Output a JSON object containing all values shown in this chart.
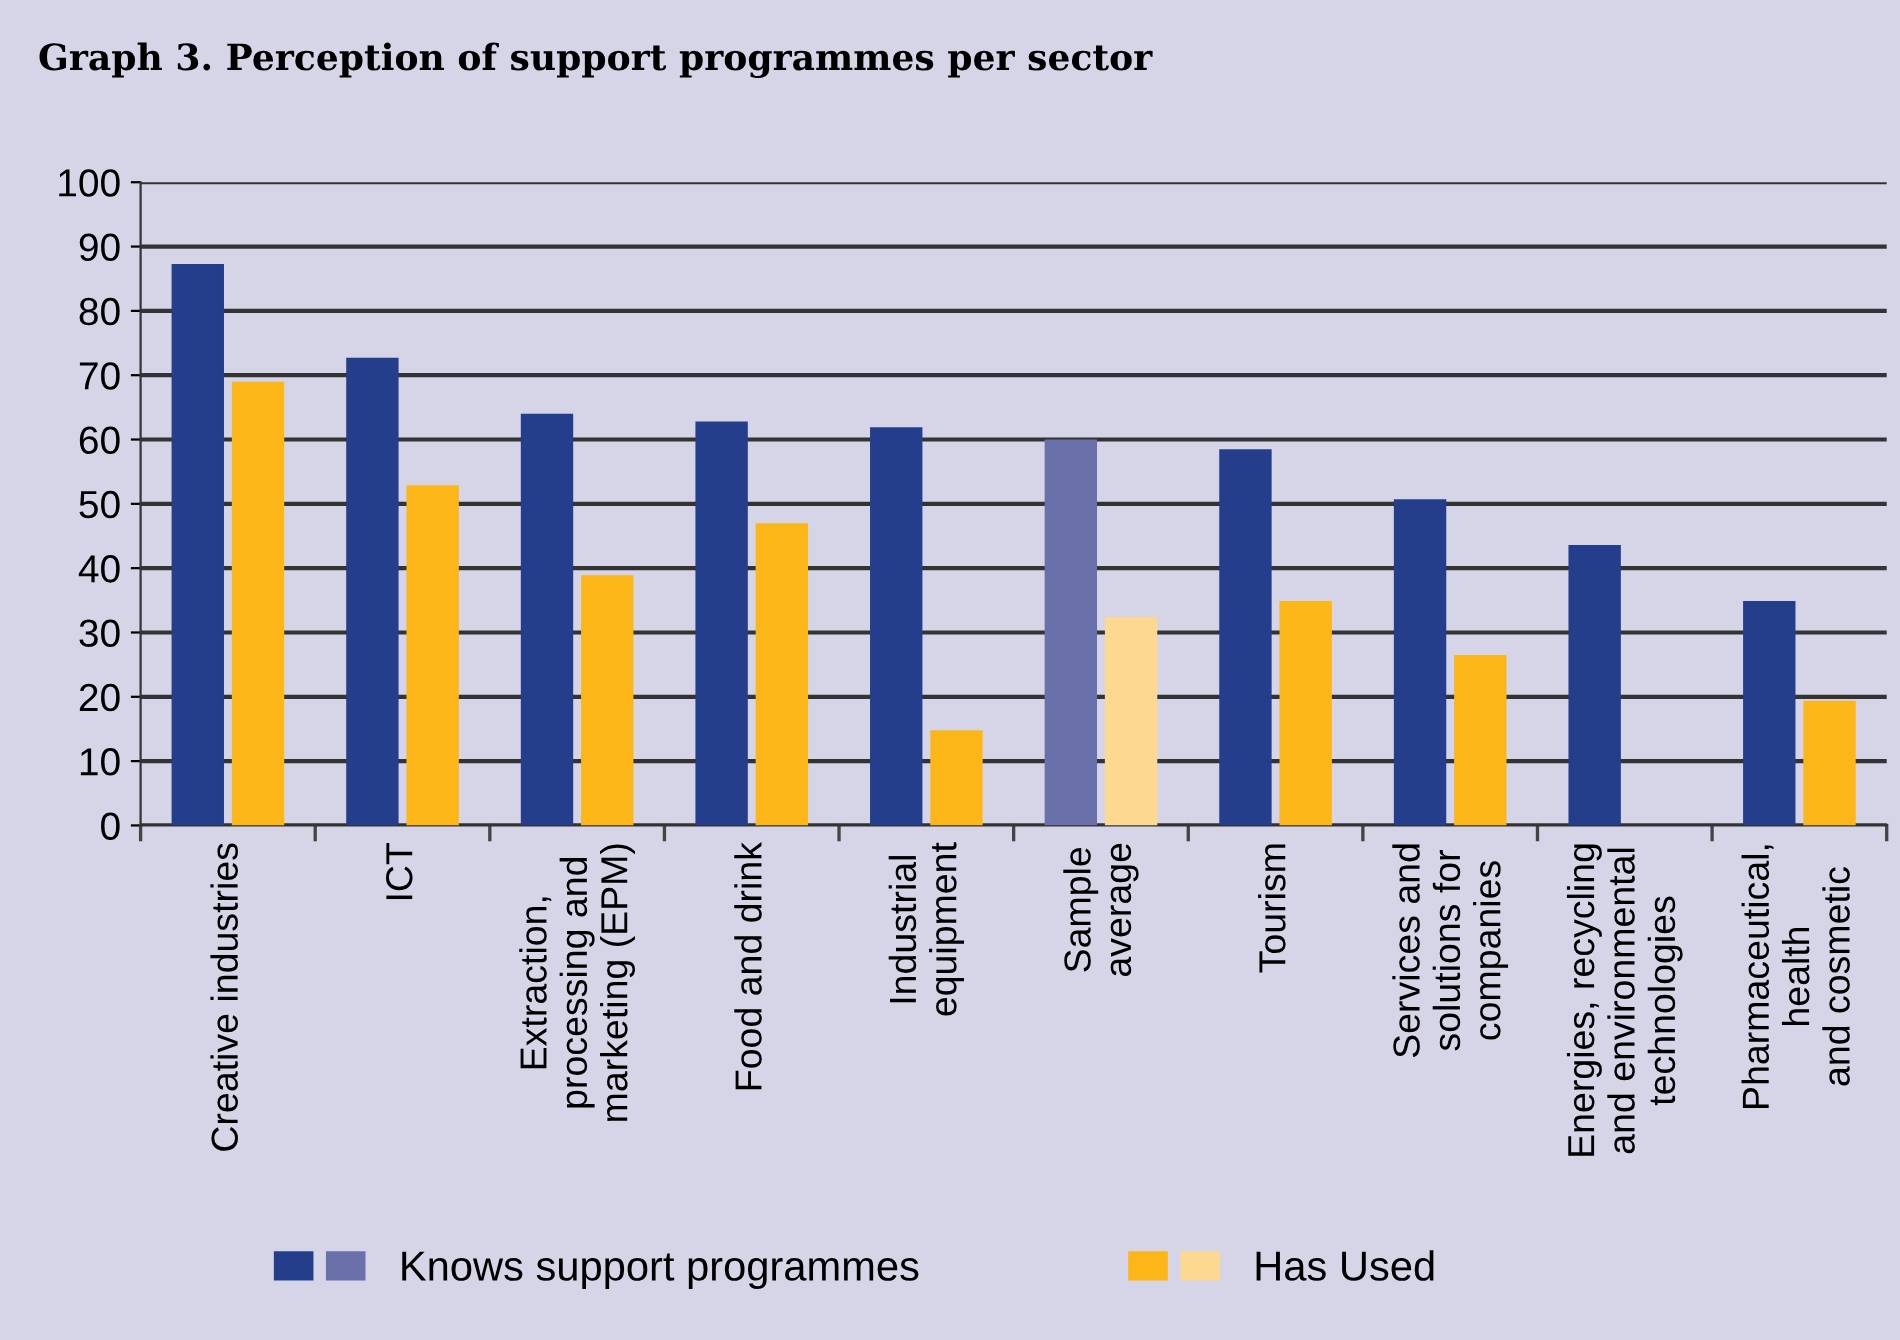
{
  "chart_data": {
    "type": "bar",
    "title": "Graph 3. Perception of support programmes per sector",
    "categories": [
      "Creative industries",
      "ICT",
      "Extraction,\nprocessing and\nmarketing (EPM)",
      "Food and drink",
      "Industrial\nequipment",
      "Sample\naverage",
      "Tourism",
      "Services and\nsolutions for\ncompanies",
      "Energies, recycling\nand environmental\ntechnologies",
      "Pharmaceutical,\nhealth\nand cosmetic"
    ],
    "series": [
      {
        "name": "Knows support programmes",
        "color": "#243e8c",
        "colors": [
          "#243e8c",
          "#243e8c",
          "#243e8c",
          "#243e8c",
          "#243e8c",
          "#6a70aa",
          "#243e8c",
          "#243e8c",
          "#243e8c",
          "#243e8c"
        ],
        "values": [
          87.3,
          72.7,
          64.0,
          62.8,
          61.9,
          60,
          58.5,
          50.7,
          43.6,
          34.9
        ]
      },
      {
        "name": "Has Used",
        "color": "#fcb618",
        "colors": [
          "#fcb618",
          "#fcb618",
          "#fcb618",
          "#fcb618",
          "#fcb618",
          "#fdd891",
          "#fcb618",
          "#fcb618",
          "#fcb618",
          "#fcb618"
        ],
        "values": [
          69.0,
          52.9,
          38.9,
          47.0,
          14.8,
          32.4,
          34.9,
          26.5,
          null,
          19.4
        ]
      }
    ],
    "ylim": [
      0,
      100
    ],
    "yticks": [
      0,
      10,
      20,
      30,
      40,
      50,
      60,
      70,
      80,
      90,
      100
    ],
    "grid": "y",
    "legend": "bottom"
  }
}
